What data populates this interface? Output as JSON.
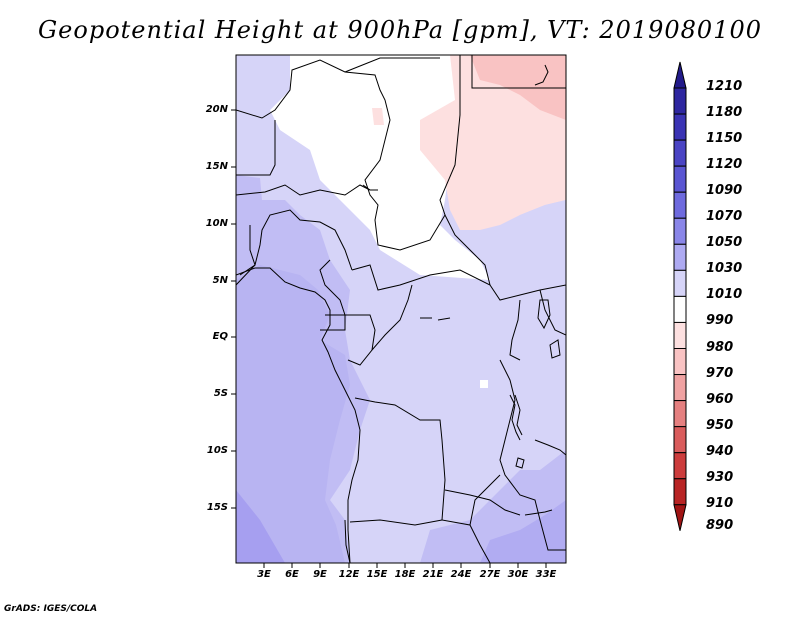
{
  "title": "Geopotential Height at 900hPa [gpm], VT: 2019080100",
  "credit": "GrADS: IGES/COLA",
  "map": {
    "lon_range": [
      0,
      35
    ],
    "lat_range": [
      -20,
      25
    ],
    "lat_ticks": [
      "20N",
      "15N",
      "10N",
      "5N",
      "EQ",
      "5S",
      "10S",
      "15S"
    ],
    "lon_ticks": [
      "3E",
      "6E",
      "9E",
      "12E",
      "15E",
      "18E",
      "21E",
      "24E",
      "27E",
      "30E",
      "33E"
    ]
  },
  "colorbar": {
    "labels": [
      "1210",
      "1180",
      "1150",
      "1120",
      "1090",
      "1070",
      "1050",
      "1030",
      "1010",
      "990",
      "980",
      "970",
      "960",
      "950",
      "940",
      "930",
      "910",
      "890"
    ],
    "colors": [
      "#221a8a",
      "#2e27a0",
      "#3a33b4",
      "#4a44c4",
      "#5a55d2",
      "#6e6ade",
      "#8a86e8",
      "#aeaaf2",
      "#d6d4f8",
      "#ffffff",
      "#fde0e0",
      "#f9c3c3",
      "#f0a2a2",
      "#e58080",
      "#d95c5c",
      "#cc3c3c",
      "#b82424",
      "#a01414"
    ]
  }
}
